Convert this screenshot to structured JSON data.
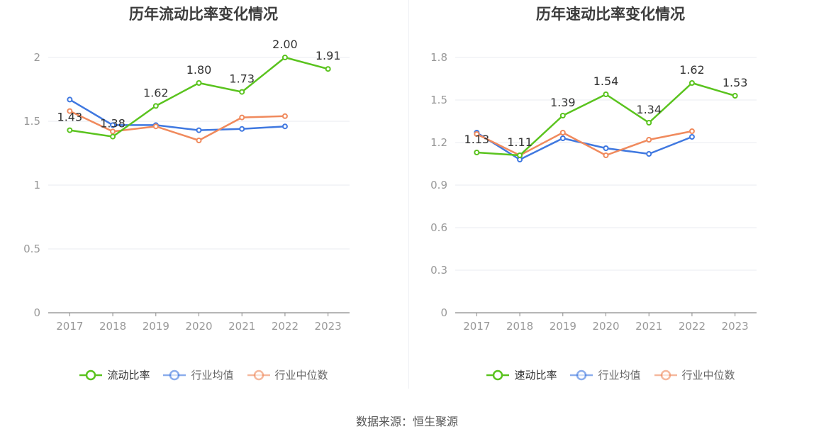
{
  "colors": {
    "company": "#5ac31e",
    "avg": "#3f78e0",
    "median": "#f08a5d",
    "grid": "#e8ebf2",
    "axis": "#999999"
  },
  "source": "数据来源：恒生聚源",
  "chart_data": [
    {
      "type": "line",
      "title": "历年流动比率变化情况",
      "categories": [
        "2017",
        "2018",
        "2019",
        "2020",
        "2021",
        "2022",
        "2023"
      ],
      "ylim": [
        0,
        2
      ],
      "yticks": [
        "0",
        "0.5",
        "1",
        "1.5",
        "2"
      ],
      "ytick_values": [
        0,
        0.5,
        1,
        1.5,
        2
      ],
      "series": [
        {
          "name": "流动比率",
          "color": "#5ac31e",
          "labeled": true,
          "values": [
            1.43,
            1.38,
            1.62,
            1.8,
            1.73,
            2.0,
            1.91
          ],
          "labels": [
            "1.43",
            "1.38",
            "1.62",
            "1.80",
            "1.73",
            "2.00",
            "1.91"
          ]
        },
        {
          "name": "行业均值",
          "color": "#3f78e0",
          "labeled": false,
          "values": [
            1.67,
            1.47,
            1.47,
            1.43,
            1.44,
            1.46,
            null
          ]
        },
        {
          "name": "行业中位数",
          "color": "#f08a5d",
          "labeled": false,
          "values": [
            1.58,
            1.42,
            1.46,
            1.35,
            1.53,
            1.54,
            null
          ]
        }
      ],
      "legend": "bottom-center",
      "grid": true
    },
    {
      "type": "line",
      "title": "历年速动比率变化情况",
      "categories": [
        "2017",
        "2018",
        "2019",
        "2020",
        "2021",
        "2022",
        "2023"
      ],
      "ylim": [
        0,
        1.8
      ],
      "yticks": [
        "0",
        "0.3",
        "0.6",
        "0.9",
        "1.2",
        "1.5",
        "1.8"
      ],
      "ytick_values": [
        0,
        0.3,
        0.6,
        0.9,
        1.2,
        1.5,
        1.8
      ],
      "series": [
        {
          "name": "速动比率",
          "color": "#5ac31e",
          "labeled": true,
          "values": [
            1.13,
            1.11,
            1.39,
            1.54,
            1.34,
            1.62,
            1.53
          ],
          "labels": [
            "1.13",
            "1.11",
            "1.39",
            "1.54",
            "1.34",
            "1.62",
            "1.53"
          ]
        },
        {
          "name": "行业均值",
          "color": "#3f78e0",
          "labeled": false,
          "values": [
            1.27,
            1.08,
            1.23,
            1.16,
            1.12,
            1.24,
            null
          ]
        },
        {
          "name": "行业中位数",
          "color": "#f08a5d",
          "labeled": false,
          "values": [
            1.26,
            1.11,
            1.27,
            1.11,
            1.22,
            1.28,
            null
          ]
        }
      ],
      "legend": "bottom-center",
      "grid": true
    }
  ]
}
